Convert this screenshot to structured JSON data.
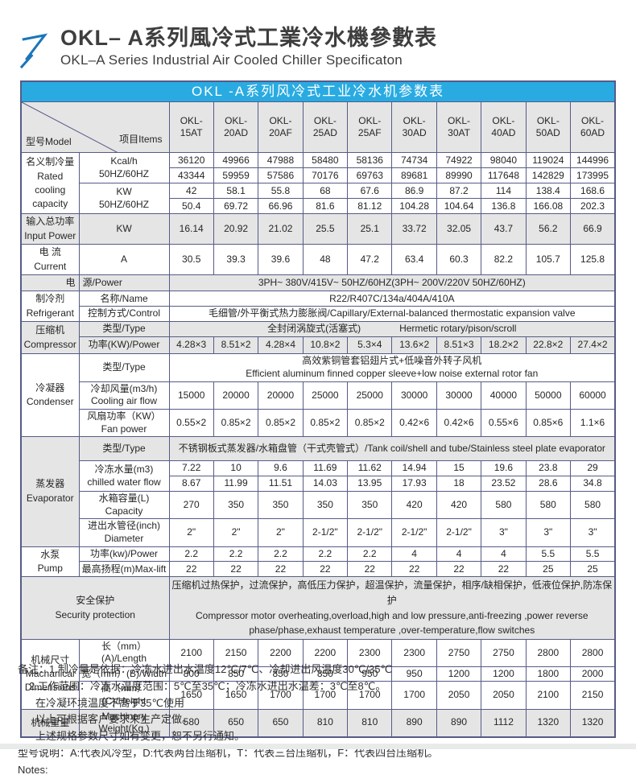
{
  "colors": {
    "banner_cyan": "#29abe2",
    "table_border": "#565b86",
    "row_shade_gray": "#e5e5e5",
    "logo_blue": "#1a75bb"
  },
  "header": {
    "title_cn": "OKL– A系列風冷式工業冷水機參數表",
    "title_en": "OKL–A Series Industrial Air Cooled Chiller Specificaton",
    "logo_icon": "arrow-up-right-icon"
  },
  "table": {
    "banner": "OKL -A系列风冷式工业冷水机参数表",
    "corner_model": "型号Model",
    "corner_items": "项目Items",
    "models": [
      "OKL-\n15AT",
      "OKL-\n20AD",
      "OKL-\n20AF",
      "OKL-\n25AD",
      "OKL-\n25AF",
      "OKL-\n30AD",
      "OKL-\n30AT",
      "OKL-\n40AD",
      "OKL-\n50AD",
      "OKL-\n60AD"
    ],
    "sections": {
      "capacity": {
        "category": "名义制冷量\nRated\ncooling\ncapacity",
        "kcal_label": "Kcal/h\n50HZ/60HZ",
        "kcal_50": [
          "36120",
          "49966",
          "47988",
          "58480",
          "58136",
          "74734",
          "74922",
          "98040",
          "119024",
          "144996"
        ],
        "kcal_60": [
          "43344",
          "59959",
          "57586",
          "70176",
          "69763",
          "89681",
          "89990",
          "117648",
          "142829",
          "173995"
        ],
        "kw_label": "KW\n50HZ/60HZ",
        "kw_50": [
          "42",
          "58.1",
          "55.8",
          "68",
          "67.6",
          "86.9",
          "87.2",
          "114",
          "138.4",
          "168.6"
        ],
        "kw_60": [
          "50.4",
          "69.72",
          "66.96",
          "81.6",
          "81.12",
          "104.28",
          "104.64",
          "136.8",
          "166.08",
          "202.3"
        ]
      },
      "input_power": {
        "category": "输入总功率\nInput Power",
        "item": "KW",
        "values": [
          "16.14",
          "20.92",
          "21.02",
          "25.5",
          "25.1",
          "33.72",
          "32.05",
          "43.7",
          "56.2",
          "66.9"
        ]
      },
      "current": {
        "category": "电 流\nCurrent",
        "item": "A",
        "values": [
          "30.5",
          "39.3",
          "39.6",
          "48",
          "47.2",
          "63.4",
          "60.3",
          "82.2",
          "105.7",
          "125.8"
        ]
      },
      "power_supply": {
        "category": "电",
        "item": "源/Power",
        "value": "3PH~ 380V/415V~ 50HZ/60HZ(3PH~ 200V/220V  50HZ/60HZ)"
      },
      "refrigerant": {
        "category": "制冷剂\nRefrigerant",
        "name_label": "名称/Name",
        "name_value": "R22/R407C/134a/404A/410A",
        "control_label": "控制方式/Control",
        "control_value": "毛细管/外平衡式热力膨胀阀/Capillary/External-balanced thermostatic expansion valve"
      },
      "compressor": {
        "category": "压缩机\nCompressor",
        "type_label": "类型/Type",
        "type_value": "全封闭涡旋式(活塞式)　　　　Hermetic rotary/pison/scroll",
        "power_label": "功率(KW)/Power",
        "power_values": [
          "4.28×3",
          "8.51×2",
          "4.28×4",
          "10.8×2",
          "5.3×4",
          "13.6×2",
          "8.51×3",
          "18.2×2",
          "22.8×2",
          "27.4×2"
        ]
      },
      "condenser": {
        "category": "冷凝器\nCondenser",
        "type_label": "类型/Type",
        "type_value": "高效紫铜管套铝翅片式+低噪音外转子风机\nEfficient aluminum finned copper sleeve+low noise external rotor fan",
        "airflow_label": "冷却风量(m3/h)\nCooling air flow",
        "airflow_values": [
          "15000",
          "20000",
          "20000",
          "25000",
          "25000",
          "30000",
          "30000",
          "40000",
          "50000",
          "60000"
        ],
        "fan_label": "风扇功率（KW）\nFan power",
        "fan_values": [
          "0.55×2",
          "0.85×2",
          "0.85×2",
          "0.85×2",
          "0.85×2",
          "0.42×6",
          "0.42×6",
          "0.55×6",
          "0.85×6",
          "1.1×6"
        ]
      },
      "evaporator": {
        "category": "蒸发器\nEvaporator",
        "type_label": "类型/Type",
        "type_value": "不锈钢板式蒸发器/水箱盘管（干式壳管式）/Tank coil/shell and tube/Stainless steel plate evaporator",
        "water_label": "冷冻水量(m3)\nchilled water flow",
        "water_50": [
          "7.22",
          "10",
          "9.6",
          "11.69",
          "11.62",
          "14.94",
          "15",
          "19.6",
          "23.8",
          "29"
        ],
        "water_60": [
          "8.67",
          "11.99",
          "11.51",
          "14.03",
          "13.95",
          "17.93",
          "18",
          "23.52",
          "28.6",
          "34.8"
        ],
        "tank_label": "水箱容量(L)\nCapacity",
        "tank_values": [
          "270",
          "350",
          "350",
          "350",
          "350",
          "420",
          "420",
          "580",
          "580",
          "580"
        ],
        "pipe_label": "进出水管径(inch)\nDiameter",
        "pipe_values": [
          "2\"",
          "2\"",
          "2\"",
          "2-1/2\"",
          "2-1/2\"",
          "2-1/2\"",
          "2-1/2\"",
          "3\"",
          "3\"",
          "3\""
        ]
      },
      "pump": {
        "category": "水泵\nPump",
        "power_label": "功率(kw)/Power",
        "power_values": [
          "2.2",
          "2.2",
          "2.2",
          "2.2",
          "2.2",
          "4",
          "4",
          "4",
          "5.5",
          "5.5"
        ],
        "lift_label": "最高扬程(m)Max-lift",
        "lift_values": [
          "22",
          "22",
          "22",
          "22",
          "22",
          "22",
          "22",
          "22",
          "25",
          "25"
        ]
      },
      "security": {
        "category": "安全保护\nSecurity protection",
        "value": "压缩机过热保护，过流保护，高低压力保护，超温保护，流量保护，相序/缺相保护，低液位保护,防冻保护\nCompressor motor overheating,overload,high and low pressure,anti-freezing ,power reverse phase/phase,exhaust temperature ,over-temperature,flow switches"
      },
      "dimensions": {
        "category": "机械尺寸\nMachanical\nDimensions",
        "length_label": "长（mm）(A)/Length",
        "length_values": [
          "2100",
          "2150",
          "2200",
          "2200",
          "2300",
          "2300",
          "2750",
          "2750",
          "2800",
          "2800"
        ],
        "width_label": "宽（mm）(B)/Width",
        "width_values": [
          "800",
          "850",
          "850",
          "850",
          "950",
          "950",
          "1200",
          "1200",
          "1800",
          "2000"
        ],
        "height_label": "高（mm）(C)/Height",
        "height_values": [
          "1650",
          "1650",
          "1700",
          "1700",
          "1700",
          "1700",
          "2050",
          "2050",
          "2100",
          "2150"
        ]
      },
      "weight": {
        "category": "机械重量",
        "item": "Machinery\nWeight(Kg )",
        "values": [
          "580",
          "650",
          "650",
          "810",
          "810",
          "890",
          "890",
          "1112",
          "1320",
          "1320"
        ]
      }
    }
  },
  "notes": {
    "lines": [
      "备注：1.制冷量是依据：冷冻水进出水温度12℃/7℃、冷却进出风温度30℃/35℃",
      "2.工作范围：冷冻水温度范围：5℃至35℃；冷冻水进出水温差：3℃至8℃。",
      "在冷凝环境温度不高于35℃使用",
      "以上可根据客户要求来生产定做。",
      "上述规格参数尺寸如有变更，恕不另行通知。",
      "型号说明：A:代表风冷型，D:代表两台压缩机，T：代表三台压缩机，F：代表四台压缩机。",
      "Notes:"
    ]
  }
}
